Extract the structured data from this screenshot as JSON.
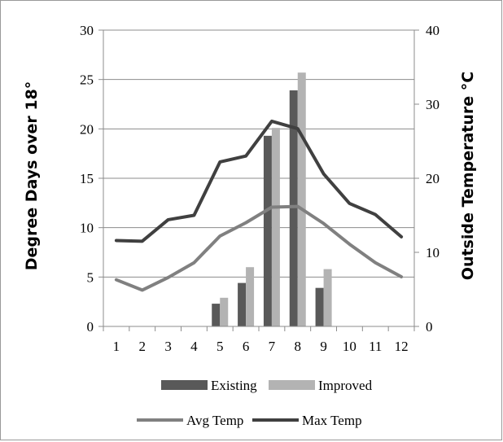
{
  "chart_data": {
    "type": "bar+line",
    "x": [
      1,
      2,
      3,
      4,
      5,
      6,
      7,
      8,
      9,
      10,
      11,
      12
    ],
    "x_ticks": [
      "1",
      "2",
      "3",
      "4",
      "5",
      "6",
      "7",
      "8",
      "9",
      "10",
      "11",
      "12"
    ],
    "y_left": {
      "label": "Degree Days over 18°",
      "lim": [
        0,
        30
      ],
      "ticks": [
        "0",
        "5",
        "10",
        "15",
        "20",
        "25",
        "30"
      ]
    },
    "y_right": {
      "label": "Outside Temperature °C",
      "lim": [
        0,
        40
      ],
      "ticks": [
        "0",
        "10",
        "20",
        "30",
        "40"
      ]
    },
    "grid": "horizontal major gridlines",
    "legend_position": "bottom",
    "bar_series": [
      {
        "name": "Existing",
        "color": "#595959",
        "values": [
          0,
          0,
          0,
          0,
          2.3,
          4.4,
          19.3,
          23.9,
          3.9,
          0,
          0,
          0
        ]
      },
      {
        "name": "Improved",
        "color": "#b3b3b3",
        "values": [
          0,
          0,
          0,
          0,
          2.9,
          6.0,
          20.1,
          25.7,
          5.8,
          0,
          0,
          0
        ]
      }
    ],
    "line_series": [
      {
        "name": "Avg Temp",
        "color": "#808080",
        "axis": "right",
        "values": [
          6.3,
          4.9,
          6.6,
          8.6,
          12.2,
          14.0,
          16.1,
          16.2,
          13.9,
          11.1,
          8.6,
          6.7
        ]
      },
      {
        "name": "Max Temp",
        "color": "#404040",
        "axis": "right",
        "values": [
          11.6,
          11.5,
          14.4,
          15.0,
          22.2,
          23.0,
          27.7,
          26.7,
          20.6,
          16.6,
          15.1,
          12.1
        ]
      }
    ]
  }
}
